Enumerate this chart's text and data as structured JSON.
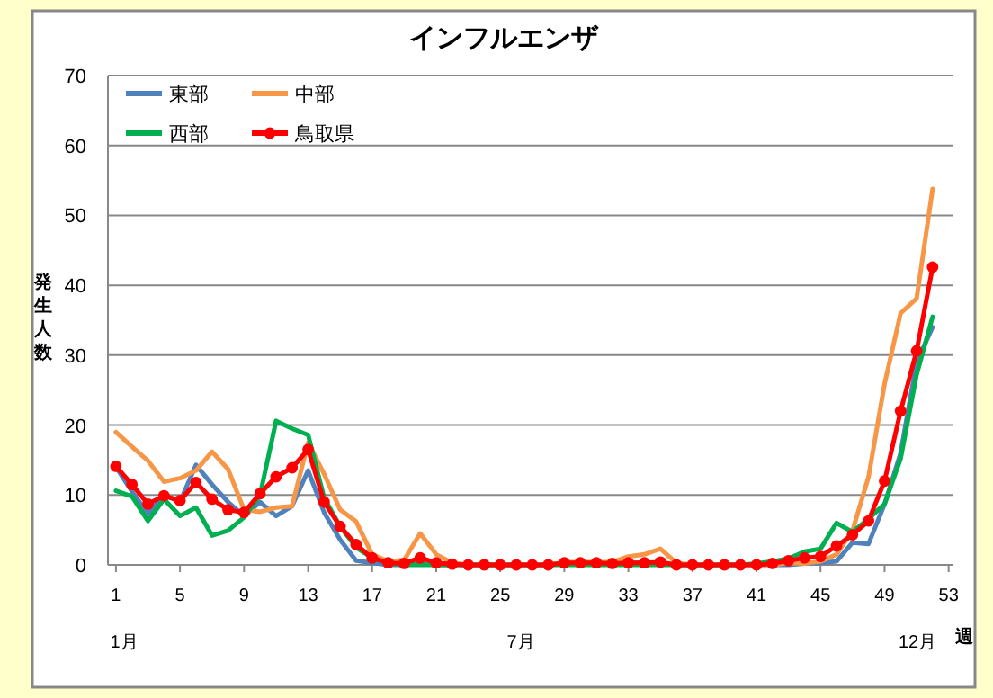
{
  "chart_data": {
    "type": "line",
    "title": "インフルエンザ",
    "ylabel": "発生人数",
    "xlabel": "週",
    "annotations": [
      "1月",
      "7月",
      "12月"
    ],
    "x": [
      1,
      2,
      3,
      4,
      5,
      6,
      7,
      8,
      9,
      10,
      11,
      12,
      13,
      14,
      15,
      16,
      17,
      18,
      19,
      20,
      21,
      22,
      23,
      24,
      25,
      26,
      27,
      28,
      29,
      30,
      31,
      32,
      33,
      34,
      35,
      36,
      37,
      38,
      39,
      40,
      41,
      42,
      43,
      44,
      45,
      46,
      47,
      48,
      49,
      50,
      51,
      52
    ],
    "xlim": [
      0.5,
      53.3
    ],
    "xticks": [
      1,
      5,
      9,
      13,
      17,
      21,
      25,
      29,
      33,
      37,
      41,
      45,
      49,
      53
    ],
    "ylim": [
      0,
      70
    ],
    "yticks": [
      0,
      10,
      20,
      30,
      40,
      50,
      60,
      70
    ],
    "grid": "y",
    "legend": "top left",
    "series": [
      {
        "name": "東部",
        "color": "#4f81bd",
        "values": [
          14,
          10.5,
          7.3,
          10,
          9,
          14.3,
          11.5,
          9,
          7,
          9,
          7,
          8.4,
          13.5,
          7.5,
          3.6,
          0.6,
          0.3,
          0,
          0,
          0.2,
          0,
          0,
          0,
          0,
          0,
          0,
          0,
          0,
          0.3,
          0.3,
          0.3,
          0.3,
          0.3,
          0.3,
          0.3,
          0,
          0,
          0,
          0,
          0,
          0,
          0,
          0,
          0.2,
          0.3,
          0.5,
          3.2,
          3,
          8.7,
          16,
          29,
          34
        ]
      },
      {
        "name": "中部",
        "color": "#f79646",
        "values": [
          19,
          16.9,
          14.9,
          11.9,
          12.4,
          13.5,
          16.2,
          13.7,
          7.9,
          7.6,
          8.2,
          8.4,
          17.5,
          13,
          7.9,
          6.2,
          1.5,
          0.5,
          0.7,
          4.5,
          1.5,
          0.3,
          0,
          0,
          0,
          0,
          0,
          0,
          0.4,
          0.4,
          0.4,
          0.4,
          1.2,
          1.5,
          2.3,
          0.3,
          0,
          0,
          0,
          0,
          0,
          0,
          0.3,
          0.2,
          0.5,
          1.5,
          4.9,
          12.6,
          25.9,
          36,
          38.1,
          53.8
        ]
      },
      {
        "name": "西部",
        "color": "#00b050",
        "values": [
          10.6,
          9.8,
          6.3,
          9.4,
          7,
          8.2,
          4.2,
          4.9,
          6.8,
          10,
          20.6,
          19.5,
          18.6,
          9.6,
          5.5,
          2.5,
          1,
          0.2,
          0,
          0,
          0,
          0,
          0,
          0,
          0,
          0,
          0,
          0,
          0,
          0,
          0,
          0,
          0,
          0,
          0,
          0,
          0,
          0,
          0,
          0,
          0.2,
          0.5,
          0.9,
          1.9,
          2.3,
          6,
          4.7,
          6.6,
          8.7,
          15.2,
          27.2,
          35.5
        ]
      },
      {
        "name": "鳥取県",
        "color": "#ff0000",
        "marker": "circle",
        "values": [
          14.1,
          11.5,
          8.7,
          9.9,
          9.2,
          11.8,
          9.4,
          7.9,
          7.5,
          10.2,
          12.6,
          13.9,
          16.5,
          9,
          5.5,
          2.9,
          1,
          0.3,
          0.2,
          1,
          0.3,
          0.1,
          0,
          0,
          0,
          0,
          0,
          0,
          0.3,
          0.3,
          0.3,
          0.2,
          0.3,
          0.3,
          0.4,
          0,
          0,
          0,
          0,
          0,
          0,
          0.2,
          0.6,
          1,
          1.2,
          2.7,
          4.3,
          6.3,
          12,
          22,
          30.6,
          42.6
        ]
      }
    ]
  }
}
